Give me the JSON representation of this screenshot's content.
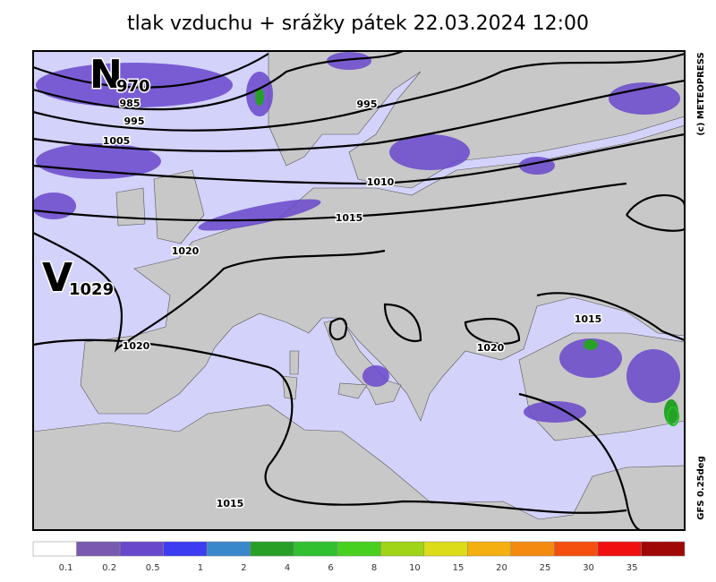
{
  "title": "tlak vzduchu + srážky   pátek 22.03.2024 12:00",
  "credit": "(c) METEOPRESS",
  "model": "GFS 0.25deg",
  "centers": [
    {
      "letter": "N",
      "value": "970"
    },
    {
      "letter": "V",
      "value": "1029"
    }
  ],
  "isobar_labels": [
    "985",
    "995",
    "995",
    "1005",
    "1010",
    "1015",
    "1020",
    "1020",
    "1015",
    "1020",
    "1015"
  ],
  "legend": {
    "colors": [
      "#ffffff",
      "#7a5ab0",
      "#6a48cc",
      "#3c3cf0",
      "#3a88cc",
      "#28a028",
      "#30c030",
      "#48d020",
      "#a0d418",
      "#dcdc18",
      "#f4b010",
      "#f48a10",
      "#f45010",
      "#f01010",
      "#a00808"
    ],
    "labels": [
      "0.1",
      "0.2",
      "0.5",
      "1",
      "2",
      "4",
      "6",
      "8",
      "10",
      "15",
      "20",
      "25",
      "30",
      "35"
    ]
  }
}
